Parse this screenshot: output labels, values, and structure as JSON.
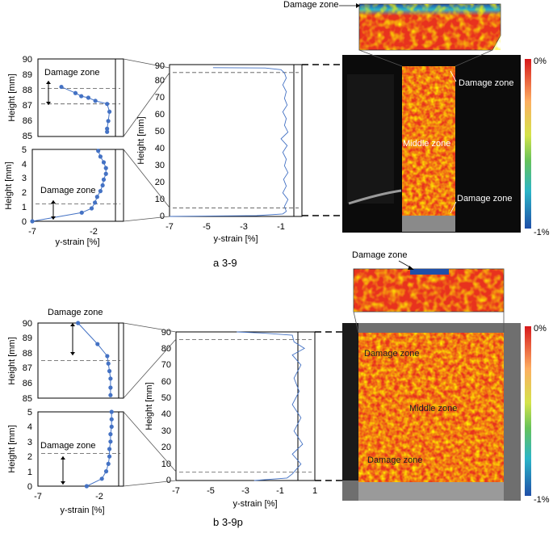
{
  "panels": [
    {
      "caption": "a  3-9",
      "top_plot": {
        "ylabel": "Height [mm]",
        "yticks": [
          "85",
          "86",
          "87",
          "88",
          "89",
          "90"
        ],
        "annotation": "Damage zone"
      },
      "bottom_plot": {
        "ylabel": "Height [mm]",
        "yticks": [
          "0",
          "1",
          "2",
          "3",
          "4",
          "5"
        ],
        "xticks": [
          "-7",
          "-2"
        ],
        "xlabel": "y-strain [%]",
        "annotation": "Damage zone"
      },
      "main_plot": {
        "ylabel": "Height [mm]",
        "yticks": [
          "0",
          "10",
          "20",
          "30",
          "40",
          "50",
          "60",
          "70",
          "80",
          "90"
        ],
        "xticks": [
          "-7",
          "-5",
          "-3",
          "-1"
        ],
        "xlabel": "y-strain [%]"
      },
      "photo": {
        "labels": {
          "top_strip": "Damage zone",
          "upper": "Damage zone",
          "middle": "Middle zone",
          "lower": "Damage zone"
        },
        "colorbar": {
          "max": "0%",
          "min": "-1%"
        }
      }
    },
    {
      "caption": "b  3-9p",
      "top_plot": {
        "ylabel": "Height [mm]",
        "yticks": [
          "85",
          "86",
          "87",
          "88",
          "89",
          "90"
        ],
        "annotation": "Damage zone"
      },
      "bottom_plot": {
        "ylabel": "Height [mm]",
        "yticks": [
          "0",
          "1",
          "2",
          "3",
          "4",
          "5"
        ],
        "xticks": [
          "-7",
          "-2"
        ],
        "xlabel": "y-strain [%]",
        "annotation": "Damage zone"
      },
      "main_plot": {
        "ylabel": "Height [mm]",
        "yticks": [
          "0",
          "10",
          "20",
          "30",
          "40",
          "50",
          "60",
          "70",
          "80",
          "90"
        ],
        "xticks": [
          "-7",
          "-5",
          "-3",
          "-1",
          "1"
        ],
        "xlabel": "y-strain [%]"
      },
      "photo": {
        "labels": {
          "top_strip": "Damage zone",
          "upper": "Damage zone",
          "middle": "Middle zone",
          "lower": "Damage zone"
        },
        "colorbar": {
          "max": "0%",
          "min": "-1%"
        }
      }
    }
  ],
  "colors": {
    "series": "#4472c4",
    "dash": "#555555",
    "hot": "#e8321e",
    "cold": "#1f4fa8"
  },
  "chart_data": [
    {
      "type": "line",
      "panel": "a 3-9 top detail",
      "xlim": [
        -7,
        0
      ],
      "ylim": [
        85,
        90
      ],
      "series": [
        {
          "points": [
            [
              -4.5,
              88.2
            ],
            [
              -3.3,
              87.8
            ],
            [
              -2.8,
              87.6
            ],
            [
              -2.2,
              87.5
            ],
            [
              -1.6,
              87.3
            ],
            [
              -0.6,
              87.1
            ],
            [
              -0.4,
              86.6
            ],
            [
              -0.5,
              86.0
            ],
            [
              -0.6,
              85.5
            ],
            [
              -0.6,
              85.3
            ]
          ]
        }
      ],
      "dashed_y": [
        88.1,
        87.1
      ]
    },
    {
      "type": "line",
      "panel": "a 3-9 bottom detail",
      "xlim": [
        -7,
        0
      ],
      "ylim": [
        0,
        5
      ],
      "series": [
        {
          "points": [
            [
              -7.0,
              0.0
            ],
            [
              -2.5,
              0.6
            ],
            [
              -1.6,
              0.9
            ],
            [
              -1.3,
              1.3
            ],
            [
              -1.1,
              1.7
            ],
            [
              -0.8,
              2.1
            ],
            [
              -0.6,
              2.5
            ],
            [
              -0.5,
              2.9
            ],
            [
              -0.3,
              3.3
            ],
            [
              -0.3,
              3.7
            ],
            [
              -0.5,
              4.1
            ],
            [
              -0.8,
              4.5
            ],
            [
              -1.0,
              4.9
            ]
          ]
        }
      ],
      "dashed_y": [
        1.2
      ]
    },
    {
      "type": "line",
      "panel": "a 3-9 full height",
      "xlim": [
        -7,
        1
      ],
      "ylim": [
        0,
        90
      ],
      "series": [
        {
          "points": [
            [
              -7.0,
              0.0
            ],
            [
              -2.0,
              0.5
            ],
            [
              -0.5,
              1.5
            ],
            [
              -0.3,
              3
            ],
            [
              -0.4,
              6
            ],
            [
              -0.2,
              10
            ],
            [
              -0.5,
              14
            ],
            [
              -0.3,
              18
            ],
            [
              -0.45,
              22
            ],
            [
              -0.2,
              26
            ],
            [
              -0.4,
              30
            ],
            [
              -0.3,
              34
            ],
            [
              -0.5,
              38
            ],
            [
              -0.25,
              42
            ],
            [
              -0.6,
              46
            ],
            [
              -0.2,
              50
            ],
            [
              -0.4,
              54
            ],
            [
              -0.3,
              58
            ],
            [
              -0.5,
              62
            ],
            [
              -0.25,
              66
            ],
            [
              -0.4,
              70
            ],
            [
              -0.3,
              74
            ],
            [
              -0.5,
              78
            ],
            [
              -0.3,
              82
            ],
            [
              -0.4,
              85
            ],
            [
              -0.6,
              87
            ],
            [
              -1.5,
              88
            ],
            [
              -4.5,
              88.2
            ]
          ]
        }
      ],
      "dashed_y": [
        85.3,
        5.0
      ]
    },
    {
      "type": "line",
      "panel": "b 3-9p top detail",
      "xlim": [
        -7,
        0
      ],
      "ylim": [
        85,
        90
      ],
      "series": [
        {
          "points": [
            [
              -3.3,
              90.0
            ],
            [
              -1.5,
              88.6
            ],
            [
              -0.6,
              87.8
            ],
            [
              -0.5,
              87.3
            ],
            [
              -0.4,
              86.8
            ],
            [
              -0.3,
              86.3
            ],
            [
              -0.3,
              85.7
            ],
            [
              -0.3,
              85.2
            ]
          ]
        }
      ],
      "dashed_y": [
        87.5
      ]
    },
    {
      "type": "line",
      "panel": "b 3-9p bottom detail",
      "xlim": [
        -7,
        0
      ],
      "ylim": [
        0,
        5
      ],
      "series": [
        {
          "points": [
            [
              -2.5,
              0.0
            ],
            [
              -1.1,
              0.5
            ],
            [
              -0.7,
              1.0
            ],
            [
              -0.5,
              1.5
            ],
            [
              -0.4,
              2.0
            ],
            [
              -0.4,
              2.5
            ],
            [
              -0.3,
              3.0
            ],
            [
              -0.3,
              3.5
            ],
            [
              -0.2,
              4.0
            ],
            [
              -0.2,
              4.5
            ],
            [
              -0.2,
              5.0
            ]
          ]
        }
      ],
      "dashed_y": [
        2.2
      ]
    },
    {
      "type": "line",
      "panel": "b 3-9p full height",
      "xlim": [
        -7,
        1
      ],
      "ylim": [
        0,
        90
      ],
      "series": [
        {
          "points": [
            [
              -2.5,
              0.0
            ],
            [
              -0.6,
              1.5
            ],
            [
              -0.3,
              4
            ],
            [
              0.2,
              10
            ],
            [
              -0.3,
              16
            ],
            [
              0.3,
              22
            ],
            [
              -0.2,
              30
            ],
            [
              0.2,
              38
            ],
            [
              -0.3,
              46
            ],
            [
              0.1,
              54
            ],
            [
              -0.2,
              62
            ],
            [
              0.2,
              70
            ],
            [
              -0.3,
              76
            ],
            [
              0.4,
              80
            ],
            [
              -0.2,
              84
            ],
            [
              -0.3,
              88
            ],
            [
              -2.0,
              89.3
            ],
            [
              -3.5,
              90.0
            ]
          ]
        }
      ],
      "dashed_y": [
        85.3,
        5.0
      ]
    }
  ]
}
